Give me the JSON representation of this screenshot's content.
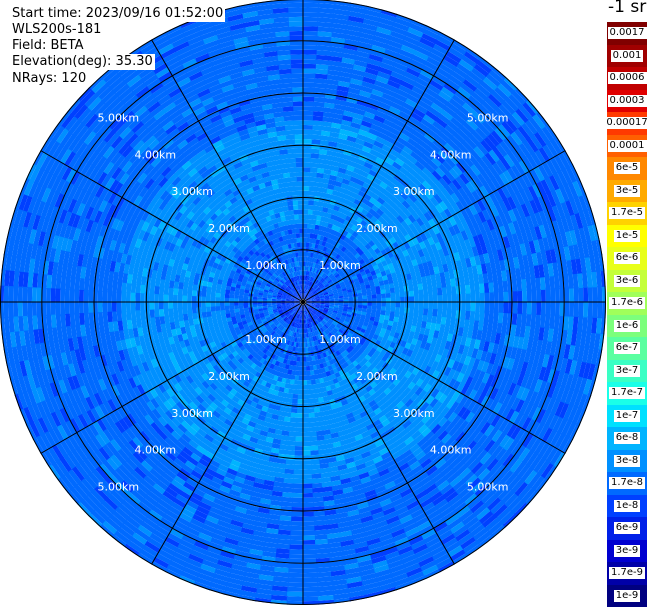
{
  "header": {
    "start_time": "Start time: 2023/09/16 01:52:00",
    "instrument": "WLS200s-181",
    "field": "Field: BETA",
    "elevation": "Elevation(deg): 35.30",
    "nrays": "NRays: 120"
  },
  "chart_data": {
    "type": "heatmap",
    "projection": "polar (PPI scan)",
    "field": "BETA",
    "elevation_deg": 35.3,
    "n_rays": 120,
    "max_range_km": 5.8,
    "range_ring_labels": [
      "1.00km",
      "2.00km",
      "3.00km",
      "4.00km",
      "5.00km"
    ],
    "spoke_angles_deg": [
      0,
      30,
      60,
      90,
      120,
      150,
      180,
      210,
      240,
      270,
      300,
      330
    ],
    "colorbar_title": "-1 sr",
    "colorbar_labels": [
      "0.0017",
      "0.001",
      "0.0006",
      "0.0003",
      "0.00017",
      "0.0001",
      "6e-5",
      "3e-5",
      "1.7e-5",
      "1e-5",
      "6e-6",
      "3e-6",
      "1.7e-6",
      "1e-6",
      "6e-7",
      "3e-7",
      "1.7e-7",
      "1e-7",
      "6e-8",
      "3e-8",
      "1.7e-8",
      "1e-8",
      "6e-9",
      "3e-9",
      "1.7e-9",
      "1e-9"
    ],
    "colorbar_colors": [
      "#800000",
      "#a00000",
      "#c00000",
      "#e00000",
      "#ff3a00",
      "#ff6000",
      "#ff8800",
      "#ffaa00",
      "#ffd200",
      "#ffff00",
      "#e8ff1a",
      "#c4ff3a",
      "#a0ff5a",
      "#7cff7c",
      "#5affa0",
      "#3affc4",
      "#1affe8",
      "#00e0ff",
      "#00b4ff",
      "#0090ff",
      "#006aff",
      "#0040ff",
      "#0020e8",
      "#0000d0",
      "#0000a8",
      "#000080"
    ],
    "range_profile_km": [
      0.0,
      1.0,
      2.0,
      3.0,
      4.0,
      5.0,
      5.8
    ],
    "range_profile_color_index": [
      21,
      20,
      19,
      19,
      20,
      20,
      20
    ]
  }
}
